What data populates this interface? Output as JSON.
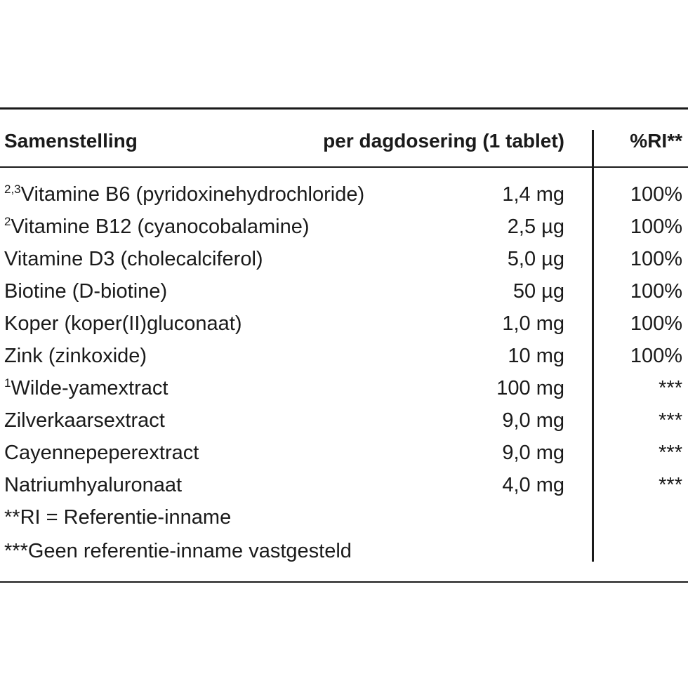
{
  "table": {
    "header": [
      "Samenstelling",
      "per dagdosering (1 tablet)",
      "%RI**"
    ],
    "rows": [
      {
        "sup": "2,3",
        "name": "Vitamine B6 (pyridoxinehydrochloride)",
        "amount": "1,4 mg",
        "ri": "100%"
      },
      {
        "sup": "2",
        "name": "Vitamine B12 (cyanocobalamine)",
        "amount": "2,5 µg",
        "ri": "100%"
      },
      {
        "name": "Vitamine D3 (cholecalciferol)",
        "amount": "5,0 µg",
        "ri": "100%"
      },
      {
        "name": "Biotine (D-biotine)",
        "amount": "50 µg",
        "ri": "100%"
      },
      {
        "name": "Koper (koper(II)gluconaat)",
        "amount": "1,0 mg",
        "ri": "100%"
      },
      {
        "name": "Zink (zinkoxide)",
        "amount": "10 mg",
        "ri": "100%"
      },
      {
        "sup": "1",
        "name": "Wilde-yamextract",
        "amount": "100 mg",
        "ri": "***"
      },
      {
        "name": "Zilverkaarsextract",
        "amount": "9,0 mg",
        "ri": "***"
      },
      {
        "name": "Cayennepeperextract",
        "amount": "9,0 mg",
        "ri": "***"
      },
      {
        "name": "Natriumhyaluronaat",
        "amount": "4,0 mg",
        "ri": "***"
      }
    ],
    "footnotes": [
      "**RI = Referentie-inname",
      "***Geen referentie-inname vastgesteld"
    ]
  }
}
